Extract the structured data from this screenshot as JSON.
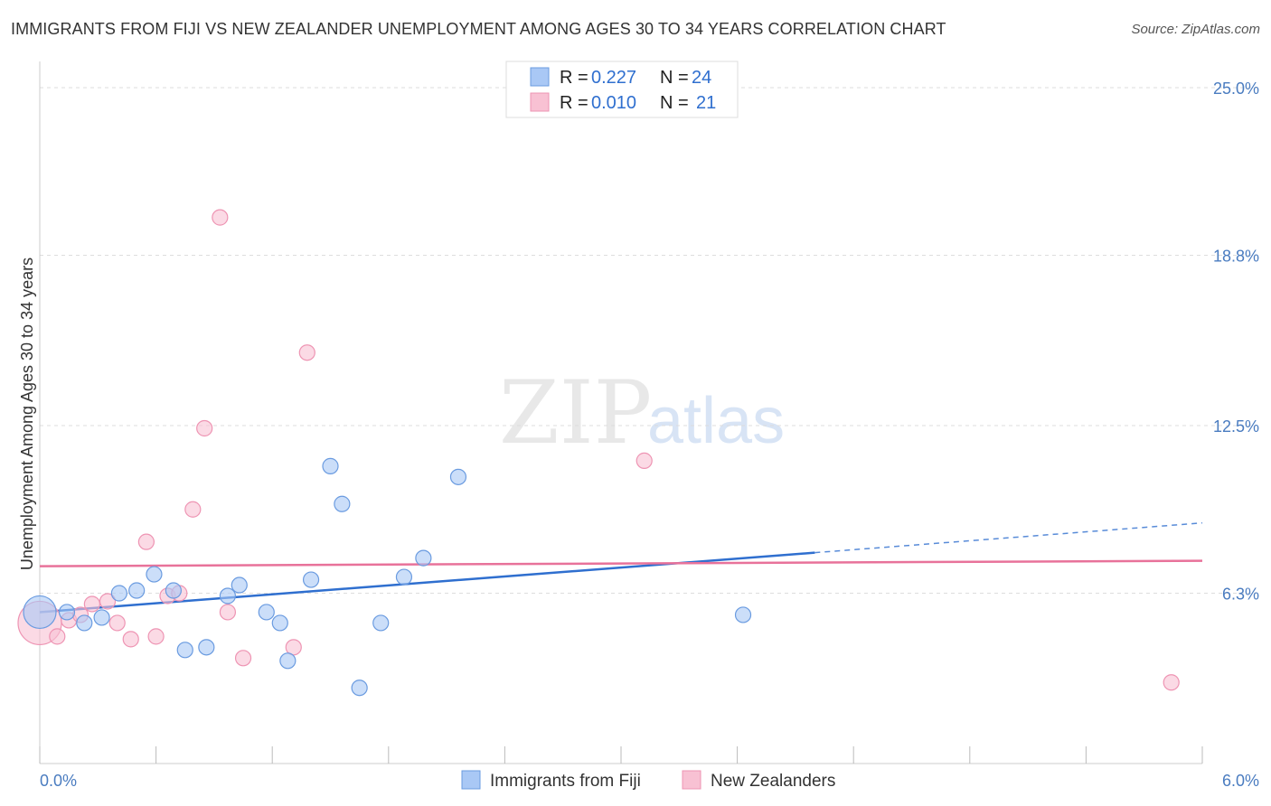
{
  "title": "IMMIGRANTS FROM FIJI VS NEW ZEALANDER UNEMPLOYMENT AMONG AGES 30 TO 34 YEARS CORRELATION CHART",
  "source": "Source: ZipAtlas.com",
  "watermark": {
    "zip": "ZIP",
    "atlas": "atlas"
  },
  "colors": {
    "fiji_fill": "#a9c8f5",
    "fiji_stroke": "#6a9be0",
    "fiji_line": "#2f6fcf",
    "nz_fill": "#f8c1d3",
    "nz_stroke": "#ee94b3",
    "nz_line": "#e8729a",
    "grid": "#dddddd",
    "axis_text": "#4a7cc0"
  },
  "legend": {
    "rows": [
      {
        "r_label": "R =",
        "r_value": "0.227",
        "n_label": "N =",
        "n_value": "24"
      },
      {
        "r_label": "R =",
        "r_value": "0.010",
        "n_label": "N =",
        "n_value": "21"
      }
    ]
  },
  "bottom_legend": {
    "items": [
      "Immigrants from Fiji",
      "New Zealanders"
    ]
  },
  "chart_data": {
    "type": "scatter",
    "title": "IMMIGRANTS FROM FIJI VS NEW ZEALANDER UNEMPLOYMENT AMONG AGES 30 TO 34 YEARS CORRELATION CHART",
    "xlabel": "",
    "ylabel": "Unemployment Among Ages 30 to 34 years",
    "xlim": [
      0.0,
      6.0
    ],
    "ylim": [
      0.0,
      25.0
    ],
    "x_tick_labels": [
      {
        "value": 0.0,
        "label": "0.0%"
      },
      {
        "value": 6.0,
        "label": "6.0%"
      }
    ],
    "x_minor_ticks": [
      0.0,
      0.6,
      1.2,
      1.8,
      2.4,
      3.0,
      3.6,
      4.2,
      4.8,
      5.4,
      6.0
    ],
    "y_ticks": [
      {
        "value": 6.3,
        "label": "6.3%"
      },
      {
        "value": 12.5,
        "label": "12.5%"
      },
      {
        "value": 18.8,
        "label": "18.8%"
      },
      {
        "value": 25.0,
        "label": "25.0%"
      }
    ],
    "grid": true,
    "legend_position": "top-center",
    "series": [
      {
        "name": "Immigrants from Fiji",
        "r": 0.227,
        "n": 24,
        "points": [
          {
            "x": 0.0,
            "y": 5.6,
            "size": 18
          },
          {
            "x": 0.14,
            "y": 5.6
          },
          {
            "x": 0.23,
            "y": 5.2
          },
          {
            "x": 0.32,
            "y": 5.4
          },
          {
            "x": 0.41,
            "y": 6.3
          },
          {
            "x": 0.5,
            "y": 6.4
          },
          {
            "x": 0.59,
            "y": 7.0
          },
          {
            "x": 0.69,
            "y": 6.4
          },
          {
            "x": 0.75,
            "y": 4.2
          },
          {
            "x": 0.86,
            "y": 4.3
          },
          {
            "x": 0.97,
            "y": 6.2
          },
          {
            "x": 1.03,
            "y": 6.6
          },
          {
            "x": 1.17,
            "y": 5.6
          },
          {
            "x": 1.24,
            "y": 5.2
          },
          {
            "x": 1.28,
            "y": 3.8
          },
          {
            "x": 1.4,
            "y": 6.8
          },
          {
            "x": 1.5,
            "y": 11.0
          },
          {
            "x": 1.56,
            "y": 9.6
          },
          {
            "x": 1.65,
            "y": 2.8
          },
          {
            "x": 1.76,
            "y": 5.2
          },
          {
            "x": 1.88,
            "y": 6.9
          },
          {
            "x": 1.98,
            "y": 7.6
          },
          {
            "x": 2.16,
            "y": 10.6
          },
          {
            "x": 3.63,
            "y": 5.5
          }
        ],
        "trend": {
          "x0": 0.0,
          "y0": 5.6,
          "x1": 4.0,
          "y1": 7.8,
          "dash_x1": 6.0,
          "dash_y1": 8.9
        }
      },
      {
        "name": "New Zealanders",
        "r": 0.01,
        "n": 21,
        "points": [
          {
            "x": 0.0,
            "y": 5.2,
            "size": 24
          },
          {
            "x": 0.09,
            "y": 4.7
          },
          {
            "x": 0.15,
            "y": 5.3
          },
          {
            "x": 0.21,
            "y": 5.5
          },
          {
            "x": 0.27,
            "y": 5.9
          },
          {
            "x": 0.35,
            "y": 6.0
          },
          {
            "x": 0.4,
            "y": 5.2
          },
          {
            "x": 0.47,
            "y": 4.6
          },
          {
            "x": 0.55,
            "y": 8.2
          },
          {
            "x": 0.6,
            "y": 4.7
          },
          {
            "x": 0.66,
            "y": 6.2
          },
          {
            "x": 0.72,
            "y": 6.3
          },
          {
            "x": 0.79,
            "y": 9.4
          },
          {
            "x": 0.85,
            "y": 12.4
          },
          {
            "x": 0.93,
            "y": 20.2
          },
          {
            "x": 0.97,
            "y": 5.6
          },
          {
            "x": 1.05,
            "y": 3.9
          },
          {
            "x": 1.31,
            "y": 4.3
          },
          {
            "x": 1.38,
            "y": 15.2
          },
          {
            "x": 3.12,
            "y": 11.2
          },
          {
            "x": 5.84,
            "y": 3.0
          }
        ],
        "trend": {
          "x0": 0.0,
          "y0": 7.3,
          "x1": 6.0,
          "y1": 7.5
        }
      }
    ]
  }
}
